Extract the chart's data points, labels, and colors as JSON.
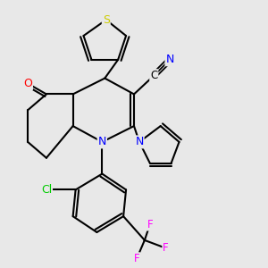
{
  "background_color": "#e8e8e8",
  "bond_color": "#000000",
  "atom_colors": {
    "S": "#cccc00",
    "N": "#0000ff",
    "O": "#ff0000",
    "Cl": "#00cc00",
    "F": "#ff00ff",
    "C": "#000000"
  }
}
